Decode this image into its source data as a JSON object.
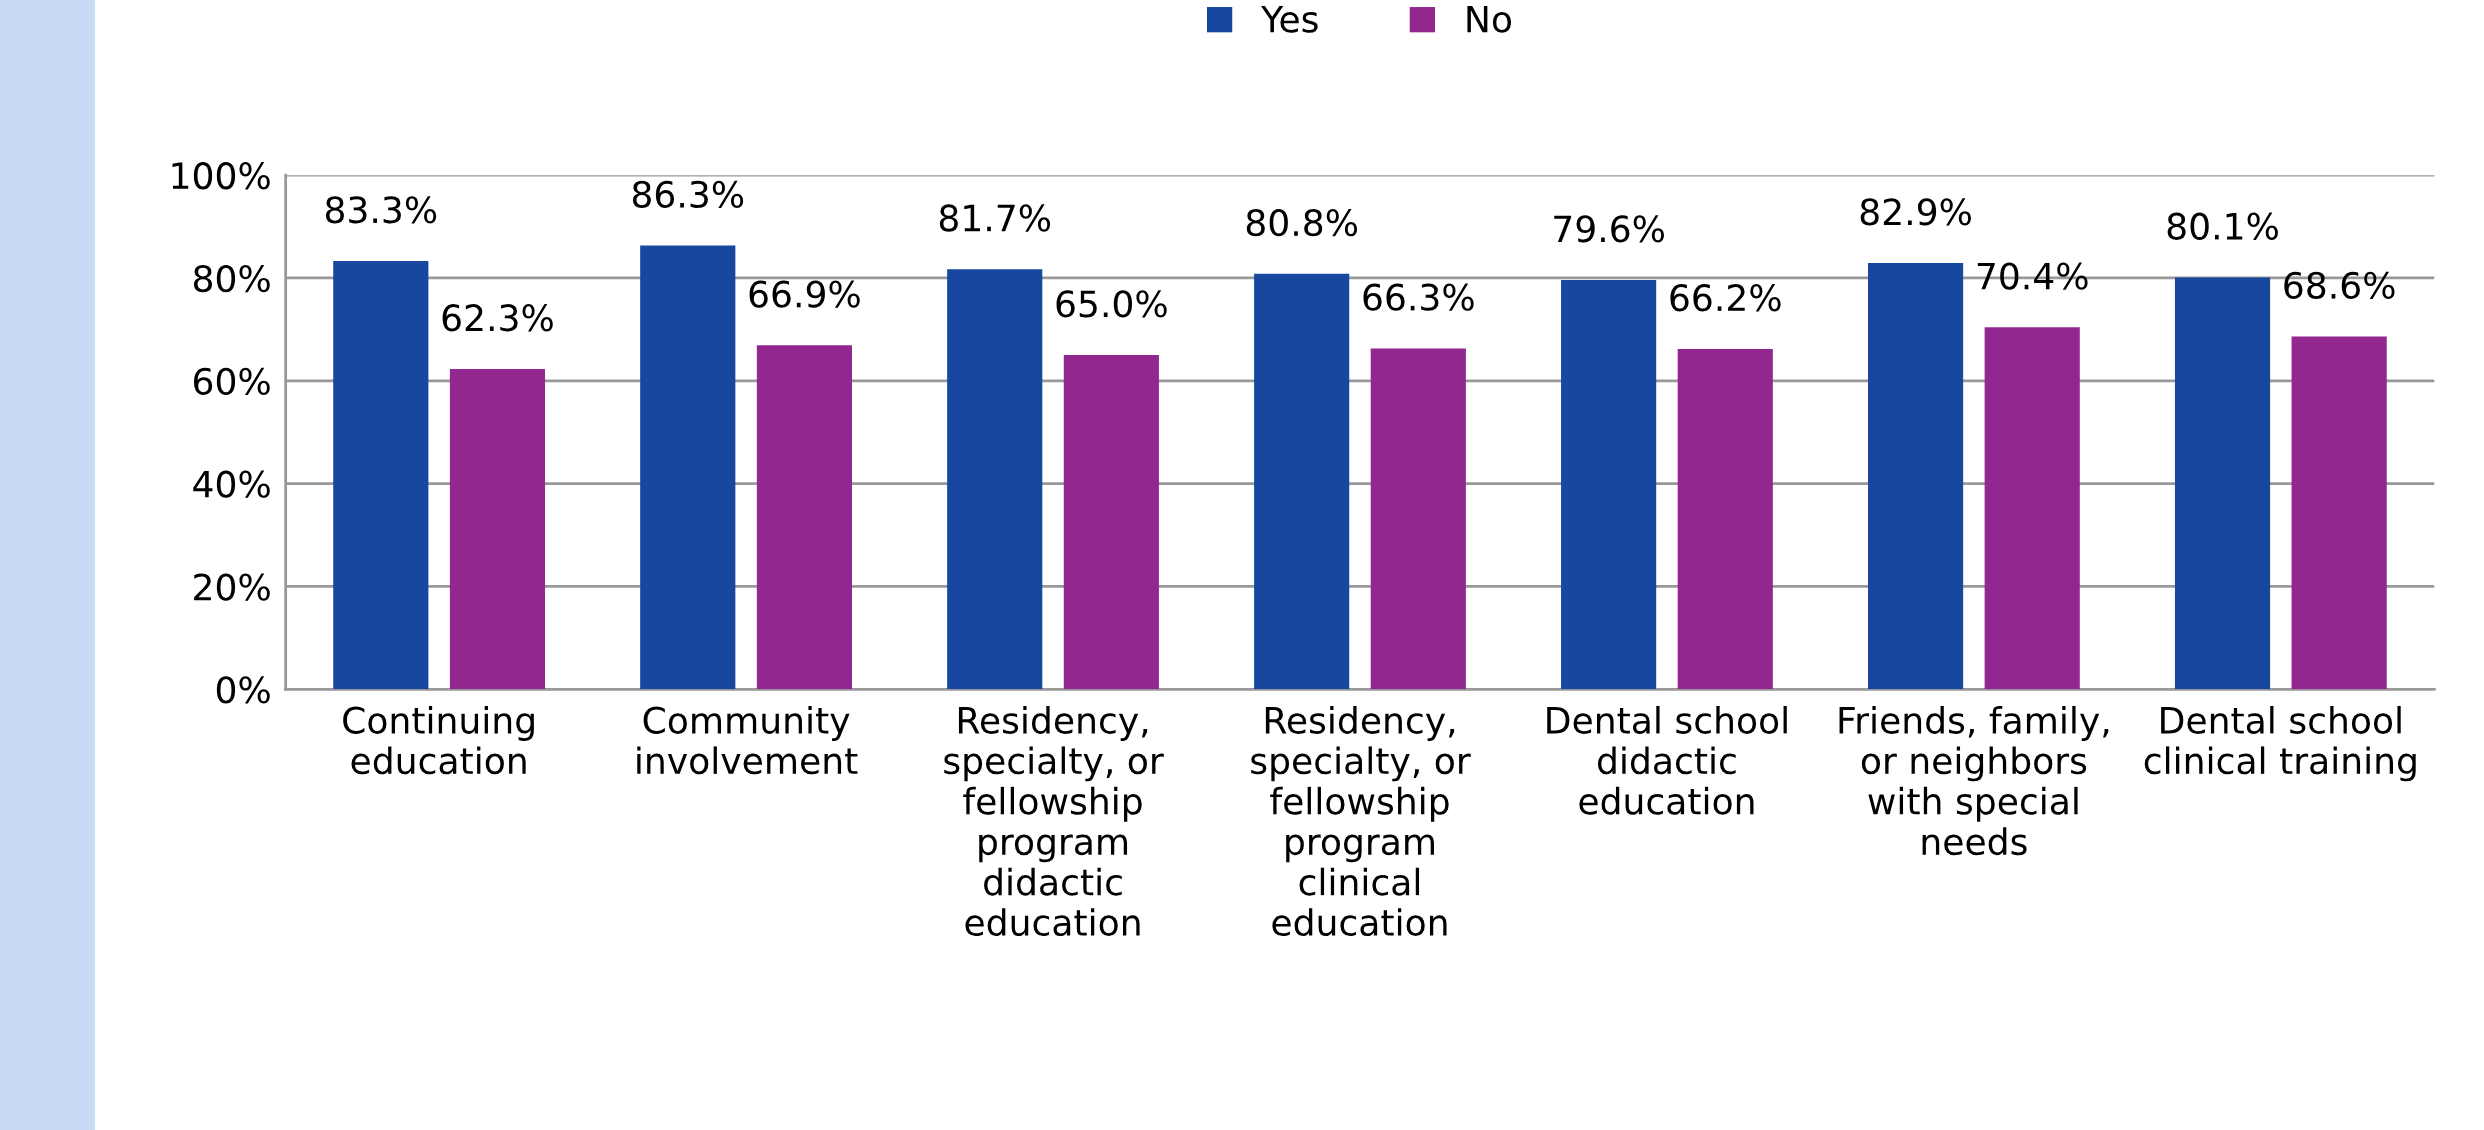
{
  "chart_data": {
    "type": "bar",
    "categories": [
      "Continuing\neducation",
      "Community\ninvolvement",
      "Residency,\nspecialty, or\nfellowship\nprogram\ndidactic\neducation",
      "Residency,\nspecialty, or\nfellowship\nprogram\nclinical\neducation",
      "Dental school\ndidactic\neducation",
      "Friends, family,\nor neighbors\nwith special\nneeds",
      "Dental school\nclinical training"
    ],
    "series": [
      {
        "name": "Yes",
        "color": "#17479e",
        "values": [
          83.3,
          86.3,
          81.7,
          80.8,
          79.6,
          82.9,
          80.1
        ],
        "value_labels": [
          "83.3%",
          "86.3%",
          "81.7%",
          "80.8%",
          "79.6%",
          "82.9%",
          "80.1%"
        ]
      },
      {
        "name": "No",
        "color": "#92278f",
        "values": [
          62.3,
          66.9,
          65.0,
          66.3,
          66.2,
          70.4,
          68.6
        ],
        "value_labels": [
          "62.3%",
          "66.9%",
          "65.0%",
          "66.3%",
          "66.2%",
          "70.4%",
          "68.6%"
        ]
      }
    ],
    "ylim": [
      0,
      100
    ],
    "yticks": [
      {
        "value": 0,
        "label": "0%"
      },
      {
        "value": 20,
        "label": "20%"
      },
      {
        "value": 40,
        "label": "40%"
      },
      {
        "value": 60,
        "label": "60%"
      },
      {
        "value": 80,
        "label": "80%"
      },
      {
        "value": 100,
        "label": "100%"
      }
    ],
    "grid": "y",
    "legend": "top"
  }
}
